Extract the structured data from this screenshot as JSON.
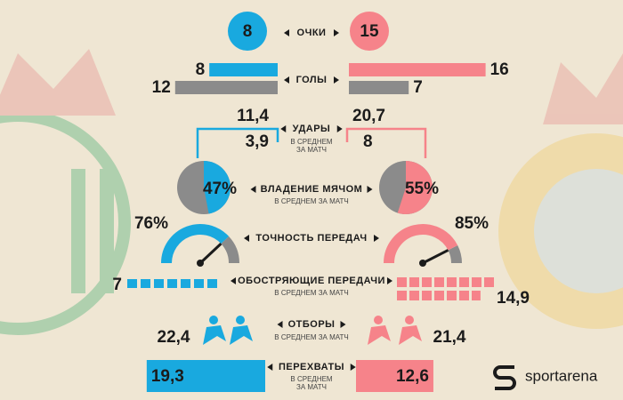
{
  "stats": {
    "points": {
      "label": "ОЧКИ",
      "home": 8,
      "away": 15
    },
    "goals": {
      "label": "ГОЛЫ",
      "home": {
        "scored": 8,
        "conceded": 12
      },
      "away": {
        "scored": 16,
        "conceded": 7
      }
    },
    "shots": {
      "label": "УДАРЫ",
      "sublabel": "В СРЕДНЕМ ЗА МАТЧ",
      "home": {
        "total": {
          "value": 11.4,
          "label": "11,4"
        },
        "on_target": {
          "value": 3.9,
          "label": "3,9"
        }
      },
      "away": {
        "total": {
          "value": 20.7,
          "label": "20,7"
        },
        "on_target": 8
      }
    },
    "possession": {
      "label": "ВЛАДЕНИЕ МЯЧОМ",
      "sublabel": "В СРЕДНЕМ ЗА МАТЧ",
      "home": {
        "value": 47,
        "label": "47%"
      },
      "away": {
        "value": 55,
        "label": "55%"
      }
    },
    "passing": {
      "label": "ТОЧНОСТЬ ПЕРЕДАЧ",
      "home": {
        "value": 76,
        "label": "76%"
      },
      "away": {
        "value": 85,
        "label": "85%"
      }
    },
    "crosses": {
      "label": "ОБОСТРЯЮЩИЕ ПЕРЕДАЧИ",
      "sublabel": "В СРЕДНЕМ ЗА МАТЧ",
      "home": 7,
      "away": {
        "value": 14.9,
        "label": "14,9"
      }
    },
    "tackles": {
      "label": "ОТБОРЫ",
      "sublabel": "В СРЕДНЕМ ЗА МАТЧ",
      "home": {
        "value": 22.4,
        "label": "22,4"
      },
      "away": {
        "value": 21.4,
        "label": "21,4"
      }
    },
    "interceptions": {
      "label": "ПЕРЕХВАТЫ",
      "sublabel": "В СРЕДНЕМ ЗА МАТЧ",
      "home": {
        "value": 19.3,
        "label": "19,3"
      },
      "away": {
        "value": 12.6,
        "label": "12,6"
      }
    }
  },
  "brand": "sportarena"
}
